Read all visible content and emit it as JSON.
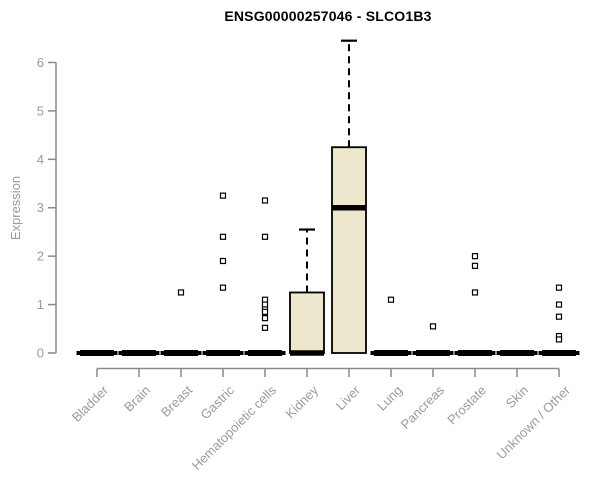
{
  "chart_data": {
    "type": "boxplot",
    "title": "ENSG00000257046 - SLCO1B3",
    "ylabel": "Expression",
    "xlabel": "",
    "ylim": [
      -0.3,
      6.6
    ],
    "yticks": [
      0,
      1,
      2,
      3,
      4,
      5,
      6
    ],
    "grid": false,
    "legend": "none",
    "categories": [
      "Bladder",
      "Brain",
      "Breast",
      "Gastric",
      "Hematopoietic cells",
      "Kidney",
      "Liver",
      "Lung",
      "Pancreas",
      "Prostate",
      "Skin",
      "Unknown / Other"
    ],
    "boxes": [
      {
        "label": "Bladder",
        "min": 0,
        "q1": 0,
        "median": 0,
        "q3": 0,
        "whisker_high": 0,
        "outliers": []
      },
      {
        "label": "Brain",
        "min": 0,
        "q1": 0,
        "median": 0,
        "q3": 0,
        "whisker_high": 0,
        "outliers": []
      },
      {
        "label": "Breast",
        "min": 0,
        "q1": 0,
        "median": 0,
        "q3": 0,
        "whisker_high": 0,
        "outliers": [
          1.25
        ]
      },
      {
        "label": "Gastric",
        "min": 0,
        "q1": 0,
        "median": 0,
        "q3": 0,
        "whisker_high": 0,
        "outliers": [
          3.25,
          2.4,
          1.9,
          1.35
        ]
      },
      {
        "label": "Hematopoietic cells",
        "min": 0,
        "q1": 0,
        "median": 0,
        "q3": 0,
        "whisker_high": 0,
        "outliers": [
          3.15,
          2.4,
          1.1,
          1.0,
          0.9,
          0.85,
          0.72,
          0.52
        ]
      },
      {
        "label": "Kidney",
        "min": 0,
        "q1": 0,
        "median": 0,
        "q3": 1.25,
        "whisker_high": 2.55,
        "outliers": []
      },
      {
        "label": "Liver",
        "min": 0,
        "q1": 0,
        "median": 3.0,
        "q3": 4.25,
        "whisker_high": 6.45,
        "outliers": []
      },
      {
        "label": "Lung",
        "min": 0,
        "q1": 0,
        "median": 0,
        "q3": 0,
        "whisker_high": 0,
        "outliers": [
          1.1
        ]
      },
      {
        "label": "Pancreas",
        "min": 0,
        "q1": 0,
        "median": 0,
        "q3": 0,
        "whisker_high": 0,
        "outliers": [
          0.55
        ]
      },
      {
        "label": "Prostate",
        "min": 0,
        "q1": 0,
        "median": 0,
        "q3": 0,
        "whisker_high": 0,
        "outliers": [
          2.0,
          1.8,
          1.25
        ]
      },
      {
        "label": "Skin",
        "min": 0,
        "q1": 0,
        "median": 0,
        "q3": 0,
        "whisker_high": 0,
        "outliers": []
      },
      {
        "label": "Unknown / Other",
        "min": 0,
        "q1": 0,
        "median": 0,
        "q3": 0,
        "whisker_high": 0,
        "outliers": [
          1.35,
          1.0,
          0.75,
          0.35,
          0.28
        ]
      }
    ],
    "colors": {
      "box_fill": "#ece7cd",
      "box_border": "#000000",
      "median": "#000000",
      "whisker": "#000000",
      "outlier_fill": "#ffffff",
      "outlier_border": "#000000",
      "axis": "#898989",
      "tick_label": "#9b9b9b",
      "title": "#000000",
      "background": "#ffffff"
    }
  }
}
